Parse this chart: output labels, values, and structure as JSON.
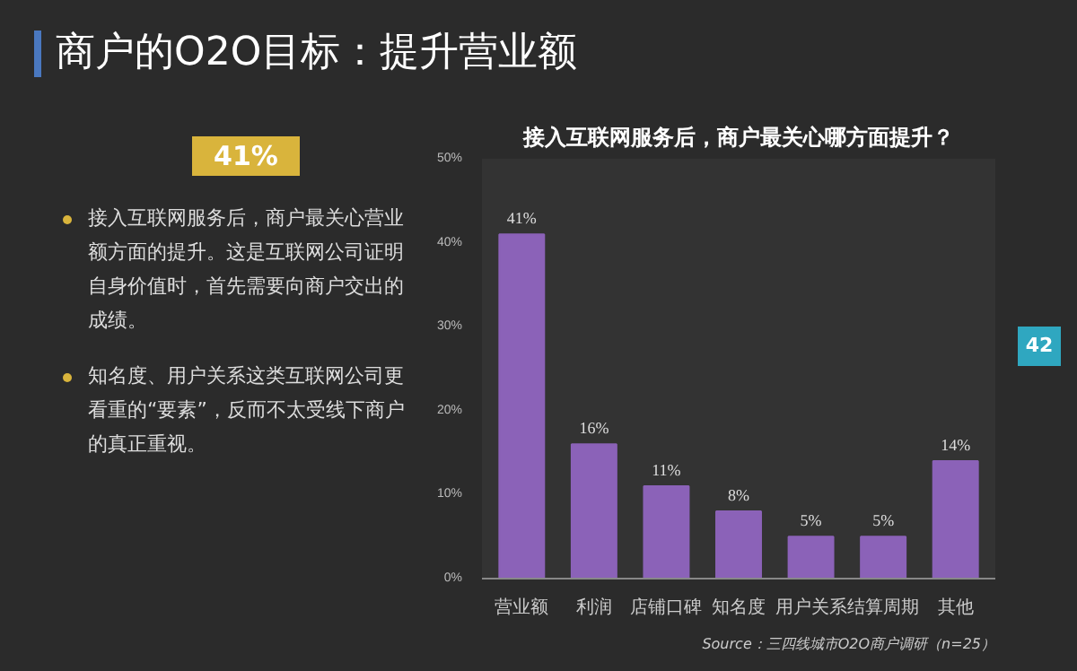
{
  "chart_data": {
    "type": "bar",
    "title": "商户的O2O目标：提升营业额",
    "subtitle": "接入互联网服务后，商户最关心哪方面提升？",
    "categories": [
      "营业额",
      "利润",
      "店铺口碑",
      "知名度",
      "用户关系",
      "结算周期",
      "其他"
    ],
    "values": [
      41,
      16,
      11,
      8,
      5,
      5,
      14
    ],
    "color": "#8b62b8",
    "ylim": [
      0,
      50
    ],
    "yticks": [
      {
        "value": 0,
        "label": "0%"
      },
      {
        "value": 10,
        "label": "10%"
      },
      {
        "value": 20,
        "label": "20%"
      },
      {
        "value": 30,
        "label": "30%"
      },
      {
        "value": 40,
        "label": "40%"
      },
      {
        "value": 50,
        "label": "50%"
      }
    ],
    "value_labels": [
      "41%",
      "16%",
      "11%",
      "8%",
      "5%",
      "5%",
      "14%"
    ],
    "grid": false,
    "legend": false,
    "annotations": [
      "41%",
      "接入互联网服务后，商户最关心营业额方面的提升。这是互联网公司证明自身价值时，首先需要向商户交出的成绩。",
      "知名度、用户关系这类互联网公司更看重的“要素”，反而不太受线下商户的真正重视。",
      "Source：三四线城市O2O商户调研（n=25）",
      "42"
    ]
  }
}
